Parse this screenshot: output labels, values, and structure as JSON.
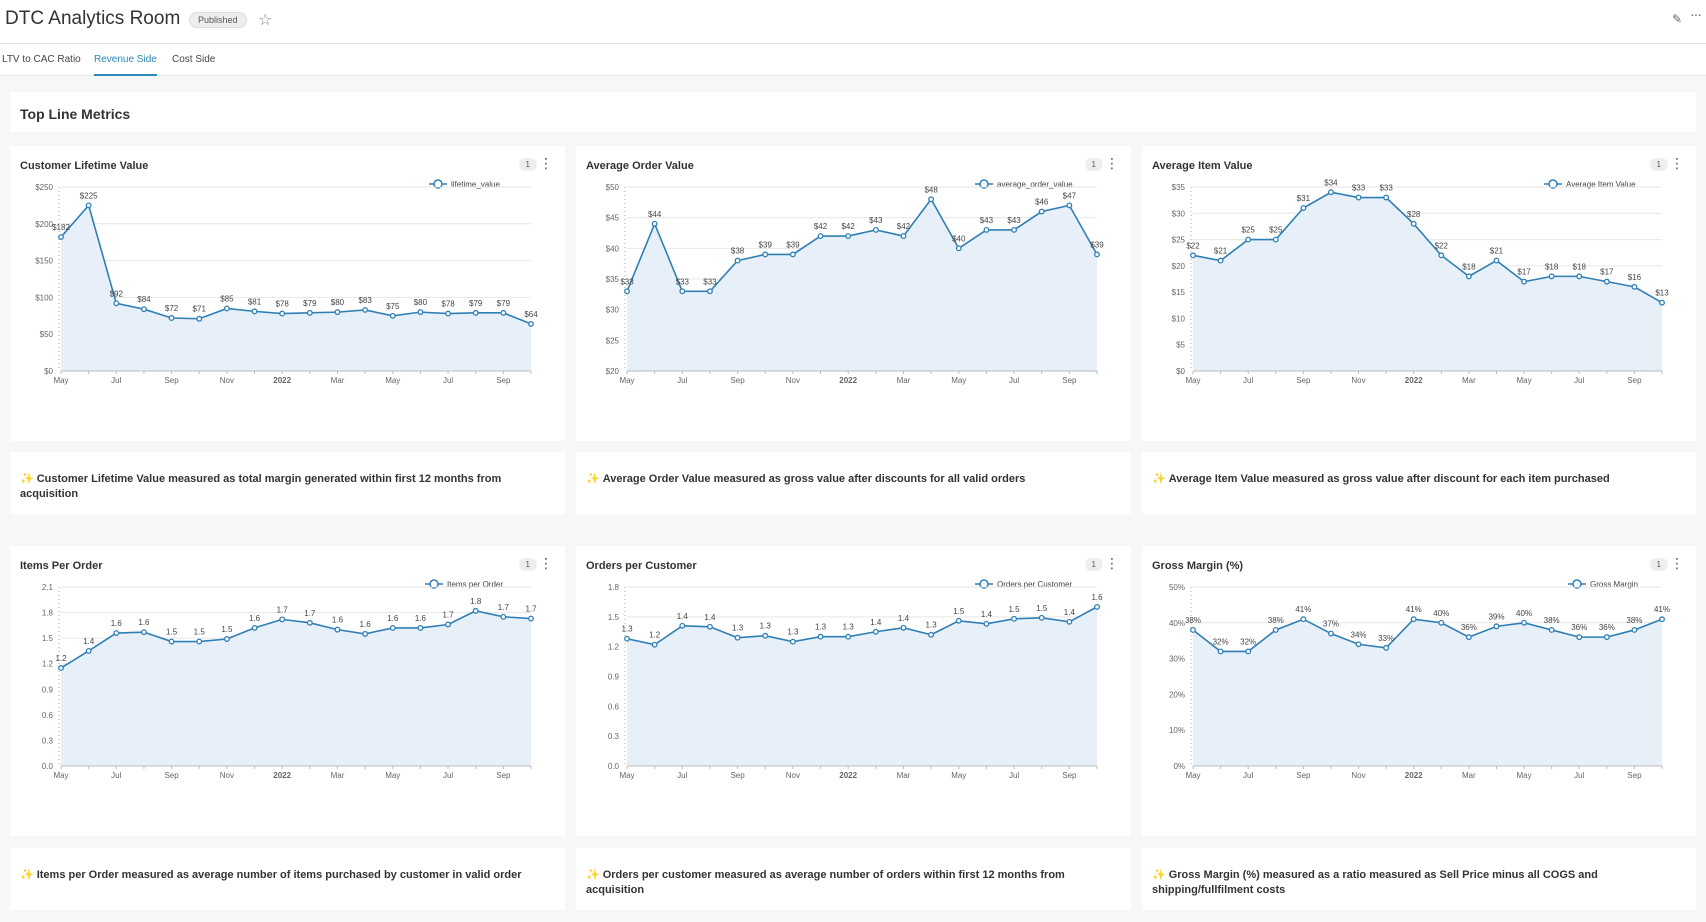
{
  "app": {
    "title": "DTC Analytics Room",
    "status_badge": "Published",
    "star_icon": "star-icon",
    "edit_icon": "pencil-icon",
    "more_icon": "more-icon"
  },
  "tabs": [
    {
      "label": "LTV to CAC Ratio"
    },
    {
      "label": "Revenue Side"
    },
    {
      "label": "Cost Side"
    }
  ],
  "active_tab": "Revenue Side",
  "section": {
    "title": "Top Line Metrics"
  },
  "colors": {
    "line": "#2f7fb5",
    "area": "#e7f0f8",
    "accent": "#2a8ab8",
    "sparkle": "#e8b400"
  },
  "cards": [
    {
      "title": "Customer Lifetime Value",
      "count": "1"
    },
    {
      "title": "Average Order Value",
      "count": "1"
    },
    {
      "title": "Average Item Value",
      "count": "1"
    },
    {
      "title": "Items Per Order",
      "count": "1"
    },
    {
      "title": "Orders per Customer",
      "count": "1"
    },
    {
      "title": "Gross Margin (%)",
      "count": "1"
    }
  ],
  "notes": [
    {
      "icon": "sparkles-icon",
      "text": "Customer Lifetime Value measured as total margin generated within first 12 months from acquisition"
    },
    {
      "icon": "sparkles-icon",
      "text": "Average Order Value measured as gross value after discounts for all valid orders"
    },
    {
      "icon": "sparkles-icon",
      "text": "Average Item Value measured as gross value after discount for each item purchased"
    },
    {
      "icon": "sparkles-icon",
      "text": "Items per Order measured as average number of items purchased by customer in valid order"
    },
    {
      "icon": "sparkles-icon",
      "text": "Orders per customer measured as average number of orders within first 12 months from acquisition"
    },
    {
      "icon": "sparkles-icon",
      "text": "Gross Margin (%) measured as a ratio measured as Sell Price minus all COGS and shipping/fullfilment costs"
    }
  ],
  "chart_data": [
    {
      "type": "area",
      "title": "Customer Lifetime Value",
      "legend": "lifetime_value",
      "n": 18,
      "values": [
        182,
        225,
        92,
        84,
        72,
        71,
        85,
        81,
        78,
        79,
        80,
        83,
        75,
        80,
        78,
        79,
        79,
        64
      ],
      "labels": [
        "$182",
        "$225",
        "$92",
        "$84",
        "$72",
        "$71",
        "$85",
        "$81",
        "$78",
        "$79",
        "$80",
        "$83",
        "$75",
        "$80",
        "$78",
        "$79",
        "$79",
        "$64"
      ],
      "xticks": [
        {
          "i": 0,
          "t": "May"
        },
        {
          "i": 2,
          "t": "Jul"
        },
        {
          "i": 4,
          "t": "Sep"
        },
        {
          "i": 6,
          "t": "Nov"
        },
        {
          "i": 8,
          "t": "2022",
          "bold": true
        },
        {
          "i": 10,
          "t": "Mar"
        },
        {
          "i": 12,
          "t": "May"
        },
        {
          "i": 14,
          "t": "Jul"
        },
        {
          "i": 16,
          "t": "Sep"
        }
      ],
      "ylim": [
        0,
        250
      ],
      "yticks": [
        {
          "v": 0,
          "t": "$0"
        },
        {
          "v": 50,
          "t": "$50"
        },
        {
          "v": 100,
          "t": "$100"
        },
        {
          "v": 150,
          "t": "$150"
        },
        {
          "v": 200,
          "t": "$200"
        },
        {
          "v": 250,
          "t": "$250"
        }
      ]
    },
    {
      "type": "area",
      "title": "Average Order Value",
      "legend": "average_order_value",
      "n": 18,
      "values": [
        33,
        44,
        33,
        33,
        38,
        39,
        39,
        42,
        42,
        43,
        42,
        48,
        40,
        43,
        43,
        46,
        47,
        39
      ],
      "labels": [
        "$33",
        "$44",
        "$33",
        "$33",
        "$38",
        "$39",
        "$39",
        "$42",
        "$42",
        "$43",
        "$42",
        "$48",
        "$40",
        "$43",
        "$43",
        "$46",
        "$47",
        "$39"
      ],
      "xticks": [
        {
          "i": 0,
          "t": "May"
        },
        {
          "i": 2,
          "t": "Jul"
        },
        {
          "i": 4,
          "t": "Sep"
        },
        {
          "i": 6,
          "t": "Nov"
        },
        {
          "i": 8,
          "t": "2022",
          "bold": true
        },
        {
          "i": 10,
          "t": "Mar"
        },
        {
          "i": 12,
          "t": "May"
        },
        {
          "i": 14,
          "t": "Jul"
        },
        {
          "i": 16,
          "t": "Sep"
        }
      ],
      "ylim": [
        20,
        50
      ],
      "yticks": [
        {
          "v": 20,
          "t": "$20"
        },
        {
          "v": 25,
          "t": "$25"
        },
        {
          "v": 30,
          "t": "$30"
        },
        {
          "v": 35,
          "t": "$35"
        },
        {
          "v": 40,
          "t": "$40"
        },
        {
          "v": 45,
          "t": "$45"
        },
        {
          "v": 50,
          "t": "$50"
        }
      ]
    },
    {
      "type": "area",
      "title": "Average Item Value",
      "legend": "Average Item Value",
      "n": 18,
      "values": [
        22,
        21,
        25,
        25,
        31,
        34,
        33,
        33,
        28,
        22,
        18,
        21,
        17,
        18,
        18,
        17,
        16,
        13
      ],
      "labels": [
        "$22",
        "$21",
        "$25",
        "$25",
        "$31",
        "$34",
        "$33",
        "$33",
        "$28",
        "$22",
        "$18",
        "$21",
        "$17",
        "$18",
        "$18",
        "$17",
        "$16",
        "$13"
      ],
      "xticks": [
        {
          "i": 0,
          "t": "May"
        },
        {
          "i": 2,
          "t": "Jul"
        },
        {
          "i": 4,
          "t": "Sep"
        },
        {
          "i": 6,
          "t": "Nov"
        },
        {
          "i": 8,
          "t": "2022",
          "bold": true
        },
        {
          "i": 10,
          "t": "Mar"
        },
        {
          "i": 12,
          "t": "May"
        },
        {
          "i": 14,
          "t": "Jul"
        },
        {
          "i": 16,
          "t": "Sep"
        }
      ],
      "ylim": [
        0,
        35
      ],
      "yticks": [
        {
          "v": 0,
          "t": "$0"
        },
        {
          "v": 5,
          "t": "$5"
        },
        {
          "v": 10,
          "t": "$10"
        },
        {
          "v": 15,
          "t": "$15"
        },
        {
          "v": 20,
          "t": "$20"
        },
        {
          "v": 25,
          "t": "$25"
        },
        {
          "v": 30,
          "t": "$30"
        },
        {
          "v": 35,
          "t": "$35"
        }
      ]
    },
    {
      "type": "area",
      "title": "Items Per Order",
      "legend": "Items per Order",
      "n": 18,
      "values": [
        1.2,
        1.4,
        1.6,
        1.6,
        1.5,
        1.5,
        1.5,
        1.6,
        1.7,
        1.7,
        1.6,
        1.6,
        1.6,
        1.6,
        1.7,
        1.8,
        1.7,
        1.7
      ],
      "plot_values": [
        1.15,
        1.35,
        1.56,
        1.57,
        1.46,
        1.46,
        1.49,
        1.62,
        1.72,
        1.68,
        1.6,
        1.55,
        1.62,
        1.62,
        1.66,
        1.82,
        1.75,
        1.73
      ],
      "labels": [
        "1.2",
        "1.4",
        "1.6",
        "1.6",
        "1.5",
        "1.5",
        "1.5",
        "1.6",
        "1.7",
        "1.7",
        "1.6",
        "1.6",
        "1.6",
        "1.6",
        "1.7",
        "1.8",
        "1.7",
        "1.7"
      ],
      "xticks": [
        {
          "i": 0,
          "t": "May"
        },
        {
          "i": 2,
          "t": "Jul"
        },
        {
          "i": 4,
          "t": "Sep"
        },
        {
          "i": 6,
          "t": "Nov"
        },
        {
          "i": 8,
          "t": "2022",
          "bold": true
        },
        {
          "i": 10,
          "t": "Mar"
        },
        {
          "i": 12,
          "t": "May"
        },
        {
          "i": 14,
          "t": "Jul"
        },
        {
          "i": 16,
          "t": "Sep"
        }
      ],
      "ylim": [
        0,
        2.1
      ],
      "yticks": [
        {
          "v": 0,
          "t": "0.0"
        },
        {
          "v": 0.3,
          "t": "0.3"
        },
        {
          "v": 0.6,
          "t": "0.6"
        },
        {
          "v": 0.9,
          "t": "0.9"
        },
        {
          "v": 1.2,
          "t": "1.2"
        },
        {
          "v": 1.5,
          "t": "1.5"
        },
        {
          "v": 1.8,
          "t": "1.8"
        },
        {
          "v": 2.1,
          "t": "2.1"
        }
      ]
    },
    {
      "type": "area",
      "title": "Orders per Customer",
      "legend": "Orders per Customer",
      "n": 18,
      "values": [
        1.3,
        1.2,
        1.4,
        1.4,
        1.3,
        1.3,
        1.3,
        1.3,
        1.3,
        1.4,
        1.4,
        1.3,
        1.5,
        1.4,
        1.5,
        1.5,
        1.4,
        1.6
      ],
      "plot_values": [
        1.28,
        1.22,
        1.41,
        1.4,
        1.29,
        1.31,
        1.25,
        1.3,
        1.3,
        1.35,
        1.39,
        1.32,
        1.46,
        1.43,
        1.48,
        1.49,
        1.45,
        1.6
      ],
      "labels": [
        "1.3",
        "1.2",
        "1.4",
        "1.4",
        "1.3",
        "1.3",
        "1.3",
        "1.3",
        "1.3",
        "1.4",
        "1.4",
        "1.3",
        "1.5",
        "1.4",
        "1.5",
        "1.5",
        "1.4",
        "1.6"
      ],
      "xticks": [
        {
          "i": 0,
          "t": "May"
        },
        {
          "i": 2,
          "t": "Jul"
        },
        {
          "i": 4,
          "t": "Sep"
        },
        {
          "i": 6,
          "t": "Nov"
        },
        {
          "i": 8,
          "t": "2022",
          "bold": true
        },
        {
          "i": 10,
          "t": "Mar"
        },
        {
          "i": 12,
          "t": "May"
        },
        {
          "i": 14,
          "t": "Jul"
        },
        {
          "i": 16,
          "t": "Sep"
        }
      ],
      "ylim": [
        0,
        1.8
      ],
      "yticks": [
        {
          "v": 0,
          "t": "0.0"
        },
        {
          "v": 0.3,
          "t": "0.3"
        },
        {
          "v": 0.6,
          "t": "0.6"
        },
        {
          "v": 0.9,
          "t": "0.9"
        },
        {
          "v": 1.2,
          "t": "1.2"
        },
        {
          "v": 1.5,
          "t": "1.5"
        },
        {
          "v": 1.8,
          "t": "1.8"
        }
      ]
    },
    {
      "type": "area",
      "title": "Gross Margin (%)",
      "legend": "Gross Margin",
      "n": 18,
      "values": [
        38,
        32,
        32,
        38,
        41,
        37,
        34,
        33,
        41,
        40,
        36,
        39,
        40,
        38,
        36,
        36,
        38,
        41
      ],
      "labels": [
        "38%",
        "32%",
        "32%",
        "38%",
        "41%",
        "37%",
        "34%",
        "33%",
        "41%",
        "40%",
        "36%",
        "39%",
        "40%",
        "38%",
        "36%",
        "36%",
        "38%",
        "41%"
      ],
      "xticks": [
        {
          "i": 0,
          "t": "May"
        },
        {
          "i": 2,
          "t": "Jul"
        },
        {
          "i": 4,
          "t": "Sep"
        },
        {
          "i": 6,
          "t": "Nov"
        },
        {
          "i": 8,
          "t": "2022",
          "bold": true
        },
        {
          "i": 10,
          "t": "Mar"
        },
        {
          "i": 12,
          "t": "May"
        },
        {
          "i": 14,
          "t": "Jul"
        },
        {
          "i": 16,
          "t": "Sep"
        }
      ],
      "ylim": [
        0,
        50
      ],
      "yticks": [
        {
          "v": 0,
          "t": "0%"
        },
        {
          "v": 10,
          "t": "10%"
        },
        {
          "v": 20,
          "t": "20%"
        },
        {
          "v": 30,
          "t": "30%"
        },
        {
          "v": 40,
          "t": "40%"
        },
        {
          "v": 50,
          "t": "50%"
        }
      ]
    }
  ]
}
